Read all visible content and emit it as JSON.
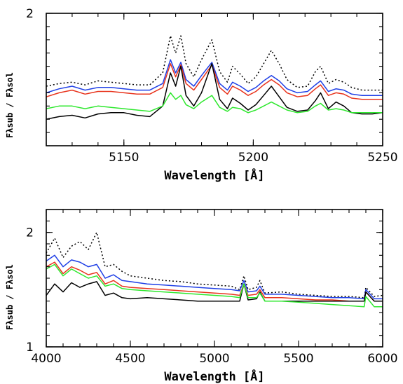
{
  "chart_data": [
    {
      "type": "line",
      "xlabel": "Wavelength [Å]",
      "ylabel": "Fλsub / Fλsol",
      "xlim": [
        5120,
        5250
      ],
      "ylim": [
        1.0,
        2.0
      ],
      "xticks": [
        5150,
        5200,
        5250
      ],
      "yticks": [
        2
      ],
      "grid": false,
      "series": [
        {
          "color": "#000000",
          "dash": "2,3",
          "x": [
            5120,
            5125,
            5130,
            5135,
            5140,
            5145,
            5150,
            5155,
            5160,
            5165,
            5168,
            5170,
            5172,
            5174,
            5177,
            5180,
            5184,
            5187,
            5190,
            5192,
            5195,
            5198,
            5201,
            5204,
            5207,
            5210,
            5213,
            5217,
            5221,
            5224,
            5226,
            5229,
            5232,
            5235,
            5238,
            5242,
            5246,
            5250
          ],
          "y": [
            1.45,
            1.47,
            1.48,
            1.46,
            1.49,
            1.48,
            1.47,
            1.46,
            1.46,
            1.55,
            1.83,
            1.7,
            1.83,
            1.62,
            1.52,
            1.65,
            1.8,
            1.56,
            1.48,
            1.6,
            1.54,
            1.47,
            1.52,
            1.62,
            1.72,
            1.62,
            1.5,
            1.44,
            1.45,
            1.56,
            1.6,
            1.47,
            1.5,
            1.48,
            1.44,
            1.42,
            1.42,
            1.42
          ]
        },
        {
          "color": "#1f3fe6",
          "dash": "",
          "x": [
            5120,
            5125,
            5130,
            5135,
            5140,
            5145,
            5150,
            5155,
            5160,
            5165,
            5168,
            5170,
            5172,
            5174,
            5177,
            5180,
            5184,
            5187,
            5190,
            5192,
            5195,
            5198,
            5201,
            5204,
            5207,
            5210,
            5213,
            5217,
            5221,
            5224,
            5226,
            5229,
            5232,
            5235,
            5238,
            5242,
            5246,
            5250
          ],
          "y": [
            1.4,
            1.43,
            1.45,
            1.42,
            1.44,
            1.44,
            1.43,
            1.42,
            1.42,
            1.47,
            1.65,
            1.55,
            1.63,
            1.5,
            1.45,
            1.53,
            1.63,
            1.47,
            1.42,
            1.48,
            1.45,
            1.41,
            1.44,
            1.49,
            1.53,
            1.49,
            1.43,
            1.4,
            1.41,
            1.46,
            1.49,
            1.41,
            1.43,
            1.42,
            1.39,
            1.38,
            1.38,
            1.38
          ]
        },
        {
          "color": "#e8331c",
          "dash": "",
          "x": [
            5120,
            5125,
            5130,
            5135,
            5140,
            5145,
            5150,
            5155,
            5160,
            5165,
            5168,
            5170,
            5172,
            5174,
            5177,
            5180,
            5184,
            5187,
            5190,
            5192,
            5195,
            5198,
            5201,
            5204,
            5207,
            5210,
            5213,
            5217,
            5221,
            5224,
            5226,
            5229,
            5232,
            5235,
            5238,
            5242,
            5246,
            5250
          ],
          "y": [
            1.37,
            1.4,
            1.42,
            1.39,
            1.41,
            1.41,
            1.4,
            1.39,
            1.39,
            1.44,
            1.62,
            1.52,
            1.61,
            1.47,
            1.42,
            1.5,
            1.61,
            1.44,
            1.39,
            1.45,
            1.42,
            1.38,
            1.41,
            1.46,
            1.5,
            1.46,
            1.4,
            1.37,
            1.38,
            1.43,
            1.46,
            1.38,
            1.4,
            1.39,
            1.36,
            1.35,
            1.35,
            1.35
          ]
        },
        {
          "color": "#000000",
          "dash": "",
          "x": [
            5120,
            5125,
            5130,
            5135,
            5140,
            5145,
            5150,
            5155,
            5160,
            5165,
            5168,
            5170,
            5172,
            5174,
            5177,
            5180,
            5184,
            5187,
            5190,
            5192,
            5195,
            5198,
            5201,
            5204,
            5207,
            5210,
            5213,
            5217,
            5221,
            5224,
            5226,
            5229,
            5232,
            5235,
            5238,
            5242,
            5246,
            5250
          ],
          "y": [
            1.2,
            1.22,
            1.23,
            1.21,
            1.24,
            1.25,
            1.25,
            1.23,
            1.22,
            1.3,
            1.55,
            1.45,
            1.6,
            1.38,
            1.3,
            1.4,
            1.62,
            1.35,
            1.28,
            1.36,
            1.32,
            1.27,
            1.31,
            1.38,
            1.45,
            1.37,
            1.29,
            1.26,
            1.27,
            1.34,
            1.4,
            1.28,
            1.33,
            1.3,
            1.25,
            1.24,
            1.24,
            1.25
          ]
        },
        {
          "color": "#2ee82e",
          "dash": "",
          "x": [
            5120,
            5125,
            5130,
            5135,
            5140,
            5145,
            5150,
            5155,
            5160,
            5165,
            5168,
            5170,
            5172,
            5174,
            5177,
            5180,
            5184,
            5187,
            5190,
            5192,
            5195,
            5198,
            5201,
            5204,
            5207,
            5210,
            5213,
            5217,
            5221,
            5224,
            5226,
            5229,
            5232,
            5235,
            5238,
            5242,
            5246,
            5250
          ],
          "y": [
            1.28,
            1.3,
            1.3,
            1.28,
            1.3,
            1.29,
            1.28,
            1.27,
            1.26,
            1.3,
            1.4,
            1.35,
            1.38,
            1.31,
            1.28,
            1.33,
            1.38,
            1.29,
            1.26,
            1.29,
            1.28,
            1.25,
            1.27,
            1.3,
            1.33,
            1.3,
            1.27,
            1.25,
            1.26,
            1.3,
            1.32,
            1.27,
            1.28,
            1.27,
            1.25,
            1.25,
            1.25,
            1.25
          ]
        }
      ]
    },
    {
      "type": "line",
      "xlabel": "Wavelength [Å]",
      "ylabel": "Fλsub / Fλsol",
      "xlim": [
        4000,
        6000
      ],
      "ylim": [
        1.0,
        2.2
      ],
      "xticks": [
        4000,
        4500,
        5000,
        5500,
        6000
      ],
      "yticks": [
        1,
        2
      ],
      "grid": false,
      "series": [
        {
          "color": "#000000",
          "dash": "2,3",
          "x": [
            4000,
            4050,
            4100,
            4150,
            4200,
            4250,
            4300,
            4350,
            4400,
            4450,
            4500,
            4600,
            4700,
            4800,
            4900,
            5000,
            5100,
            5150,
            5175,
            5200,
            5250,
            5270,
            5300,
            5400,
            5500,
            5600,
            5700,
            5800,
            5890,
            5900,
            5950,
            6000
          ],
          "y": [
            1.82,
            1.95,
            1.78,
            1.88,
            1.92,
            1.85,
            2.0,
            1.7,
            1.72,
            1.66,
            1.62,
            1.6,
            1.58,
            1.57,
            1.55,
            1.54,
            1.53,
            1.5,
            1.62,
            1.5,
            1.52,
            1.58,
            1.47,
            1.48,
            1.46,
            1.45,
            1.44,
            1.44,
            1.43,
            1.52,
            1.44,
            1.45
          ]
        },
        {
          "color": "#1f3fe6",
          "dash": "",
          "x": [
            4000,
            4050,
            4100,
            4150,
            4200,
            4250,
            4300,
            4350,
            4400,
            4450,
            4500,
            4600,
            4700,
            4800,
            4900,
            5000,
            5100,
            5150,
            5175,
            5200,
            5250,
            5270,
            5300,
            5400,
            5500,
            5600,
            5700,
            5800,
            5890,
            5900,
            5950,
            6000
          ],
          "y": [
            1.75,
            1.8,
            1.7,
            1.76,
            1.74,
            1.7,
            1.72,
            1.6,
            1.63,
            1.58,
            1.57,
            1.55,
            1.54,
            1.53,
            1.52,
            1.51,
            1.5,
            1.49,
            1.58,
            1.48,
            1.49,
            1.53,
            1.46,
            1.46,
            1.45,
            1.44,
            1.43,
            1.43,
            1.42,
            1.5,
            1.42,
            1.42
          ]
        },
        {
          "color": "#e8331c",
          "dash": "",
          "x": [
            4000,
            4050,
            4100,
            4150,
            4200,
            4250,
            4300,
            4350,
            4400,
            4450,
            4500,
            4600,
            4700,
            4800,
            4900,
            5000,
            5100,
            5150,
            5175,
            5200,
            5250,
            5270,
            5300,
            5400,
            5500,
            5600,
            5700,
            5800,
            5890,
            5900,
            5950,
            6000
          ],
          "y": [
            1.7,
            1.74,
            1.64,
            1.7,
            1.67,
            1.63,
            1.65,
            1.55,
            1.58,
            1.53,
            1.52,
            1.51,
            1.5,
            1.49,
            1.48,
            1.47,
            1.46,
            1.45,
            1.55,
            1.45,
            1.46,
            1.5,
            1.43,
            1.43,
            1.42,
            1.41,
            1.41,
            1.4,
            1.4,
            1.48,
            1.4,
            1.4
          ]
        },
        {
          "color": "#000000",
          "dash": "",
          "x": [
            4000,
            4050,
            4100,
            4150,
            4200,
            4250,
            4300,
            4350,
            4400,
            4450,
            4500,
            4600,
            4700,
            4800,
            4900,
            5000,
            5100,
            5150,
            5175,
            5200,
            5250,
            5270,
            5300,
            5400,
            5500,
            5600,
            5700,
            5800,
            5890,
            5900,
            5950,
            6000
          ],
          "y": [
            1.45,
            1.55,
            1.48,
            1.56,
            1.52,
            1.55,
            1.57,
            1.45,
            1.47,
            1.43,
            1.42,
            1.43,
            1.42,
            1.41,
            1.4,
            1.4,
            1.4,
            1.4,
            1.55,
            1.41,
            1.42,
            1.48,
            1.4,
            1.4,
            1.4,
            1.4,
            1.4,
            1.4,
            1.4,
            1.48,
            1.4,
            1.4
          ]
        },
        {
          "color": "#2ee82e",
          "dash": "",
          "x": [
            4000,
            4050,
            4100,
            4150,
            4200,
            4250,
            4300,
            4350,
            4400,
            4450,
            4500,
            4600,
            4700,
            4800,
            4900,
            5000,
            5100,
            5150,
            5175,
            5200,
            5250,
            5270,
            5300,
            5400,
            5500,
            5600,
            5700,
            5800,
            5890,
            5900,
            5950,
            6000
          ],
          "y": [
            1.68,
            1.72,
            1.62,
            1.68,
            1.64,
            1.6,
            1.62,
            1.53,
            1.55,
            1.51,
            1.5,
            1.49,
            1.48,
            1.47,
            1.46,
            1.45,
            1.44,
            1.43,
            1.55,
            1.43,
            1.43,
            1.47,
            1.4,
            1.4,
            1.39,
            1.38,
            1.37,
            1.36,
            1.35,
            1.44,
            1.35,
            1.35
          ]
        }
      ]
    }
  ]
}
